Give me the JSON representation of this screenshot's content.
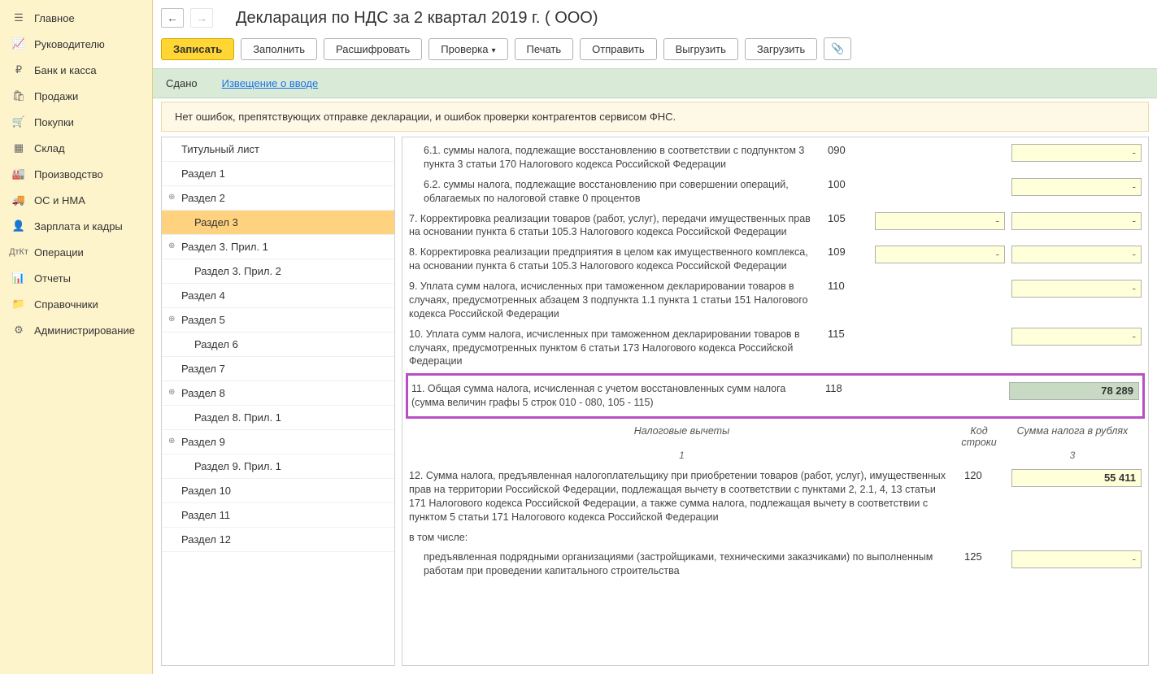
{
  "sidebar": {
    "items": [
      {
        "label": "Главное",
        "icon": "menu"
      },
      {
        "label": "Руководителю",
        "icon": "chart"
      },
      {
        "label": "Банк и касса",
        "icon": "ruble"
      },
      {
        "label": "Продажи",
        "icon": "bag"
      },
      {
        "label": "Покупки",
        "icon": "cart"
      },
      {
        "label": "Склад",
        "icon": "boxes"
      },
      {
        "label": "Производство",
        "icon": "factory"
      },
      {
        "label": "ОС и НМА",
        "icon": "truck"
      },
      {
        "label": "Зарплата и кадры",
        "icon": "person"
      },
      {
        "label": "Операции",
        "icon": "ops"
      },
      {
        "label": "Отчеты",
        "icon": "bars"
      },
      {
        "label": "Справочники",
        "icon": "folder"
      },
      {
        "label": "Администрирование",
        "icon": "gear"
      }
    ]
  },
  "page": {
    "title": "Декларация по НДС за 2 квартал 2019 г. ( ООО)"
  },
  "toolbar": {
    "write": "Записать",
    "fill": "Заполнить",
    "decode": "Расшифровать",
    "check": "Проверка",
    "print": "Печать",
    "send": "Отправить",
    "export": "Выгрузить",
    "import": "Загрузить"
  },
  "status": {
    "label": "Сдано",
    "link": "Извещение о вводе"
  },
  "info": {
    "text": "Нет ошибок, препятствующих отправке декларации, и ошибок проверки контрагентов сервисом ФНС."
  },
  "tree": {
    "items": [
      {
        "label": "Титульный лист",
        "indent": 0,
        "exp": ""
      },
      {
        "label": "Раздел 1",
        "indent": 0,
        "exp": ""
      },
      {
        "label": "Раздел 2",
        "indent": 0,
        "exp": "+"
      },
      {
        "label": "Раздел 3",
        "indent": 1,
        "exp": "",
        "active": true
      },
      {
        "label": "Раздел 3. Прил. 1",
        "indent": 0,
        "exp": "+"
      },
      {
        "label": "Раздел 3. Прил. 2",
        "indent": 1,
        "exp": ""
      },
      {
        "label": "Раздел 4",
        "indent": 0,
        "exp": ""
      },
      {
        "label": "Раздел 5",
        "indent": 0,
        "exp": "+"
      },
      {
        "label": "Раздел 6",
        "indent": 1,
        "exp": ""
      },
      {
        "label": "Раздел 7",
        "indent": 0,
        "exp": ""
      },
      {
        "label": "Раздел 8",
        "indent": 0,
        "exp": "+"
      },
      {
        "label": "Раздел 8. Прил. 1",
        "indent": 1,
        "exp": ""
      },
      {
        "label": "Раздел 9",
        "indent": 0,
        "exp": "+"
      },
      {
        "label": "Раздел 9. Прил. 1",
        "indent": 1,
        "exp": ""
      },
      {
        "label": "Раздел 10",
        "indent": 0,
        "exp": ""
      },
      {
        "label": "Раздел 11",
        "indent": 0,
        "exp": ""
      },
      {
        "label": "Раздел 12",
        "indent": 0,
        "exp": ""
      }
    ]
  },
  "form": {
    "rows": [
      {
        "label": "6.1. суммы налога, подлежащие восстановле­нию в соответствии с подпунктом 3 пункта 3 статьи 170 Налогового кодекса Российской Федерации",
        "code": "090",
        "indent": true,
        "col1": "",
        "col2": "dash"
      },
      {
        "label": "6.2. суммы налога, подлежащие восстановле­нию при совершении операций, облагаемых по налоговой ставке 0 процентов",
        "code": "100",
        "indent": true,
        "col1": "",
        "col2": "dash"
      },
      {
        "label": "7. Корректировка реализации товаров (работ, услуг), передачи имущественных прав на основании пункта 6 статьи 105.3 Налогового кодекса Российской Федерации",
        "code": "105",
        "col1": "dash",
        "col2": "dash"
      },
      {
        "label": "8. Корректировка реализации предприятия в целом как имущественного комплекса, на основании пункта 6 статьи 105.3 Налогового кодекса Российской Федерации",
        "code": "109",
        "col1": "dash",
        "col2": "dash"
      },
      {
        "label": "9. Уплата сумм налога, исчисленных при таможенном декларировании товаров в случаях, предусмотренных абзацем 3 подпункта 1.1 пункта 1 статьи 151 Налогового кодекса Российской Федерации",
        "code": "110",
        "col1": "",
        "col2": "dash"
      },
      {
        "label": "10. Уплата сумм налога, исчисленных при таможенном декларировании товаров в случаях, предусмотренных пунктом 6 статьи 173 Налогового кодекса Российской Федерации",
        "code": "115",
        "col1": "",
        "col2": "dash"
      }
    ],
    "highlighted": {
      "label": "11. Общая сумма налога, исчисленная с учетом восстановленных сумм налога (сумма величин графы 5 строк 010 - 080, 105 - 115)",
      "code": "118",
      "value": "78 289"
    },
    "subheader": {
      "title": "Налоговые вычеты",
      "col2": "Код строки",
      "col3": "Сумма налога в рублях",
      "n1": "1",
      "n3": "3"
    },
    "row12": {
      "label": "12. Сумма налога, предъявленная налогоплательщику при приобретении товаров (работ, услуг), имущественных прав на территории Российской Федерации, подлежа­щая вычету в соответствии с пунктами 2, 2.1, 4, 13 статьи 171 Налогового кодекса Российской Федерации, а также сумма налога, подлежащая вычету в соответствии с пунктом 5 статьи 171 Налогового кодекса Российской Федерации",
      "code": "120",
      "value": "55 411"
    },
    "including": "в том числе:",
    "row125": {
      "label": "предъявленная подрядными организациями (застройщиками, техническими заказчиками) по выполненным работам при проведении капитального строительства",
      "code": "125"
    }
  },
  "colors": {
    "sidebar_bg": "#fef4cc",
    "primary_btn": "#ffd633",
    "status_bg": "#d9ead7",
    "info_bg": "#fef9e7",
    "tree_active": "#ffd27f",
    "input_bg": "#ffffd9",
    "highlight_border": "#b84fc4",
    "green_input": "#c8dac4"
  }
}
